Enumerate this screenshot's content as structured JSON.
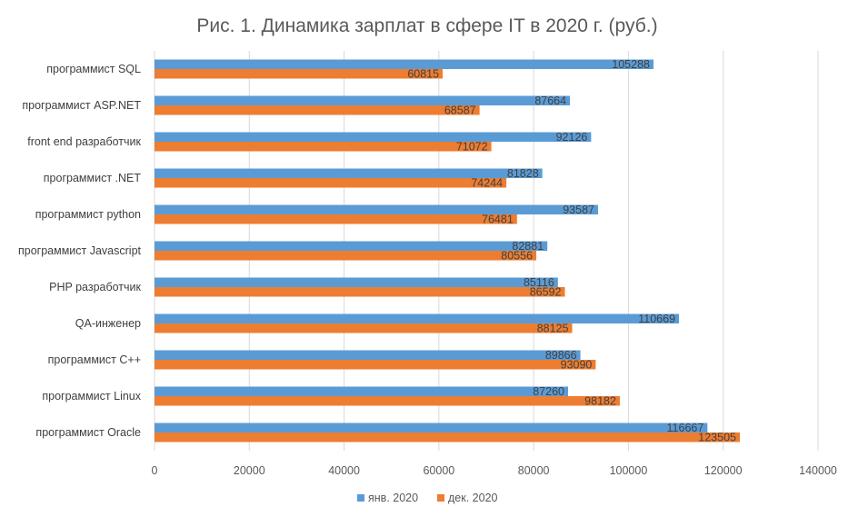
{
  "chart_data": {
    "type": "bar",
    "orientation": "horizontal",
    "title": "Рис. 1. Динамика зарплат в сфере IT в 2020 г. (руб.)",
    "xlabel": "",
    "ylabel": "",
    "xlim": [
      0,
      140000
    ],
    "x_ticks": [
      0,
      20000,
      40000,
      60000,
      80000,
      100000,
      120000,
      140000
    ],
    "grid": true,
    "legend_position": "bottom",
    "categories": [
      "программист SQL",
      "программист ASP.NET",
      "front end разработчик",
      "программист .NET",
      "программист python",
      "программист Javascript",
      "PHP разработчик",
      "QA-инженер",
      "программист C++",
      "программист Linux",
      "программист Oracle"
    ],
    "series": [
      {
        "name": "янв. 2020",
        "color": "#5B9BD5",
        "values": [
          105288,
          87664,
          92126,
          81828,
          93587,
          82881,
          85116,
          110669,
          89866,
          87260,
          116667
        ]
      },
      {
        "name": "дек. 2020",
        "color": "#ED7D31",
        "values": [
          60815,
          68587,
          71072,
          74244,
          76481,
          80556,
          86592,
          88125,
          93090,
          98182,
          123505
        ]
      }
    ]
  }
}
